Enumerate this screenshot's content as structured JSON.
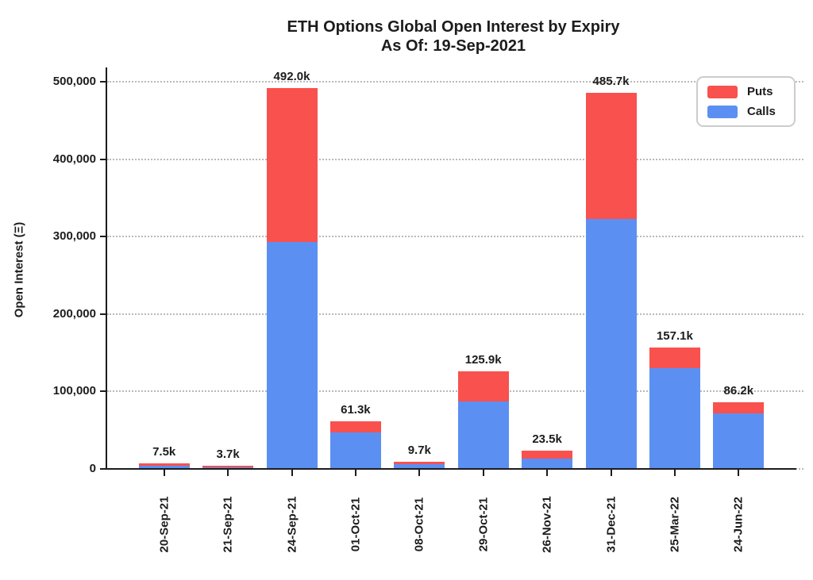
{
  "title": "ETH Options Global Open Interest by Expiry",
  "subtitle": "As Of: 19-Sep-2021",
  "ylabel": "Open Interest (Ξ)",
  "legend": {
    "entries": [
      {
        "label": "Puts",
        "color": "#f8514e"
      },
      {
        "label": "Calls",
        "color": "#5b90f2"
      }
    ]
  },
  "colors": {
    "puts": "#f8514e",
    "calls": "#5b90f2",
    "grid": "#b9b9b9",
    "axis": "#1c1c1c",
    "text": "#1c1c1c",
    "legend_border": "#cccccc"
  },
  "chart_data": {
    "type": "bar",
    "stacked": true,
    "title": "ETH Options Global Open Interest by Expiry",
    "subtitle": "As Of: 19-Sep-2021",
    "xlabel": "",
    "ylabel": "Open Interest (Ξ)",
    "categories": [
      "20-Sep-21",
      "21-Sep-21",
      "24-Sep-21",
      "01-Oct-21",
      "08-Oct-21",
      "29-Oct-21",
      "26-Nov-21",
      "31-Dec-21",
      "25-Mar-22",
      "24-Jun-22"
    ],
    "series": [
      {
        "name": "Calls",
        "color": "#5b90f2",
        "values": [
          3900,
          1900,
          293500,
          47500,
          6000,
          87500,
          13000,
          323000,
          130000,
          72000
        ]
      },
      {
        "name": "Puts",
        "color": "#f8514e",
        "values": [
          3600,
          1800,
          198500,
          13800,
          3700,
          38400,
          10500,
          162700,
          27100,
          14200
        ]
      }
    ],
    "totals": [
      7500,
      3700,
      492000,
      61300,
      9700,
      125900,
      23500,
      485700,
      157100,
      86200
    ],
    "total_labels": [
      "7.5k",
      "3.7k",
      "492.0k",
      "61.3k",
      "9.7k",
      "125.9k",
      "23.5k",
      "485.7k",
      "157.1k",
      "86.2k"
    ],
    "ylim": [
      0,
      518000
    ],
    "yticks": [
      0,
      100000,
      200000,
      300000,
      400000,
      500000
    ],
    "ytick_labels": [
      "0",
      "100,000",
      "200,000",
      "300,000",
      "400,000",
      "500,000"
    ],
    "grid": "horizontal-dotted",
    "legend_position": "upper-right"
  }
}
